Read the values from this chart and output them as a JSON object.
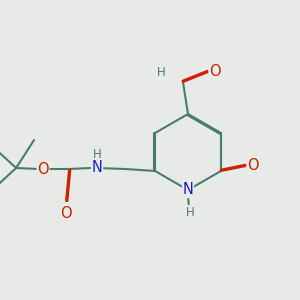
{
  "bg_color": "#e8eae8",
  "bond_color": "#4a7c6a",
  "bond_width": 1.5,
  "dbo": 0.012,
  "atom_colors": {
    "O": "#cc2200",
    "N": "#1a1acc",
    "H": "#4a7c6a",
    "C": "#4a7c6a"
  },
  "font_size": 9.5,
  "fig_size": [
    3.0,
    3.0
  ],
  "dpi": 100
}
